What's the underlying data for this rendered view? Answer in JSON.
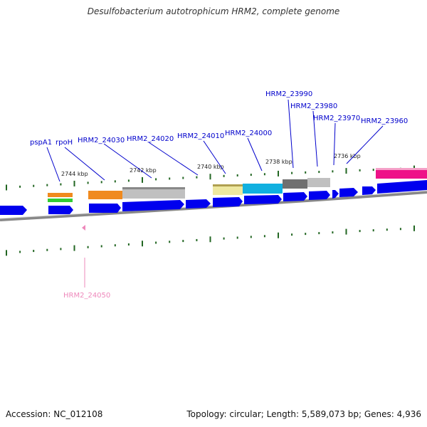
{
  "title": "Desulfobacterium autotrophicum HRM2, complete genome",
  "footer": {
    "accession": "Accession: NC_012108",
    "summary": "Topology: circular; Length: 5,589,073 bp; Genes: 4,936"
  },
  "colors": {
    "gene_label": "#0000cc",
    "reverse_label": "#ee88bb",
    "cds_forward": "#0000ee",
    "backbone": "#777777",
    "tick": "#226622",
    "orange": "#f08a1e",
    "light_gray": "#c0c0c0",
    "dark_gray": "#707070",
    "khaki": "#eee8a0",
    "cyan": "#11b0e0",
    "magenta": "#ee1188",
    "green": "#33cc33"
  },
  "scale_labels": [
    "2744 kbp",
    "2742 kbp",
    "2740 kbp",
    "2738 kbp",
    "2736 kbp"
  ],
  "gene_labels": [
    "pspA1",
    "rpoH",
    "HRM2_24030",
    "HRM2_24020",
    "HRM2_24010",
    "HRM2_24000",
    "HRM2_23990",
    "HRM2_23980",
    "HRM2_23970",
    "HRM2_23960"
  ],
  "reverse_gene_labels": [
    "HRM2_24050"
  ]
}
